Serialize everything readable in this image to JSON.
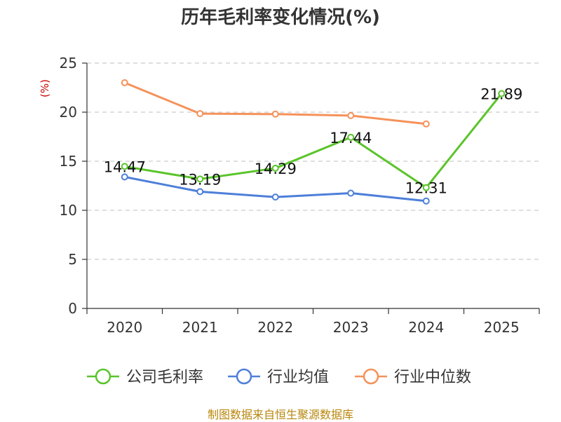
{
  "chart_data": {
    "type": "line",
    "title": "历年毛利率变化情况(%)",
    "ylabel": "(%)",
    "xlabel": "",
    "ylim": [
      0,
      25
    ],
    "yticks": [
      0,
      5,
      10,
      15,
      20,
      25
    ],
    "categories": [
      "2020",
      "2021",
      "2022",
      "2023",
      "2024",
      "2025"
    ],
    "grid": true,
    "legend_position": "bottom",
    "series": [
      {
        "name": "公司毛利率",
        "color": "#5ac42a",
        "values": [
          14.47,
          13.19,
          14.29,
          17.44,
          12.31,
          21.89
        ],
        "labels": [
          "14.47",
          "13.19",
          "14.29",
          "17.44",
          "12.31",
          "21.89"
        ]
      },
      {
        "name": "行业均值",
        "color": "#4e7fd9",
        "values": [
          13.4,
          11.9,
          11.35,
          11.75,
          10.95,
          null
        ]
      },
      {
        "name": "行业中位数",
        "color": "#f5925a",
        "values": [
          23.0,
          19.85,
          19.8,
          19.65,
          18.8,
          null
        ]
      }
    ]
  },
  "source": "制图数据来自恒生聚源数据库",
  "colors": {
    "ylabel": "#cc0000",
    "grid": "#cccccc",
    "axis": "#333333"
  }
}
